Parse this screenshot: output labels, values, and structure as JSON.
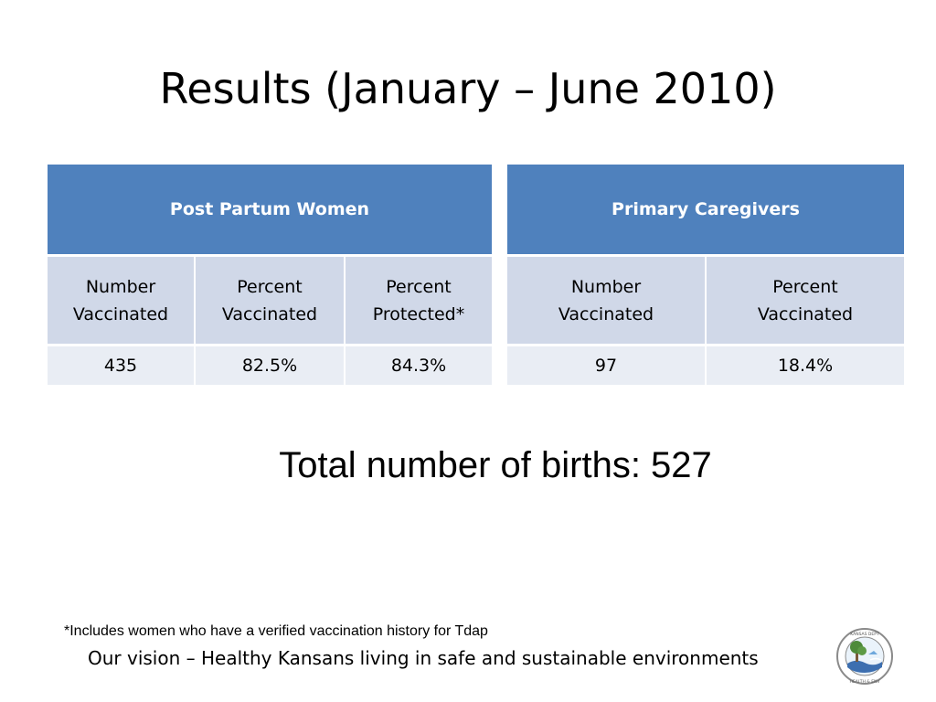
{
  "slide": {
    "title": "Results (January – June 2010)",
    "total_births_text": "Total number of births: 527",
    "footnote": "*Includes women who have a verified vaccination history for Tdap",
    "vision": "Our vision – Healthy Kansans living in safe and sustainable environments"
  },
  "left_table": {
    "header": "Post Partum Women",
    "columns": [
      [
        "Number",
        "Vaccinated"
      ],
      [
        "Percent",
        "Vaccinated"
      ],
      [
        "Percent",
        "Protected*"
      ]
    ],
    "values": [
      "435",
      "82.5%",
      "84.3%"
    ]
  },
  "right_table": {
    "header": "Primary Caregivers",
    "columns": [
      [
        "Number",
        "Vaccinated"
      ],
      [
        "Percent",
        "Vaccinated"
      ]
    ],
    "values": [
      "97",
      "18.4%"
    ]
  },
  "logo": {
    "icon": "kdhe-seal-icon",
    "text": "KANSAS DEPARTMENT OF HEALTH & ENVIRONMENT",
    "colors": {
      "ring": "#8a8a8a",
      "sky": "#6fa8dc",
      "tree": "#4e8a3a",
      "water": "#3d6fb0"
    }
  }
}
